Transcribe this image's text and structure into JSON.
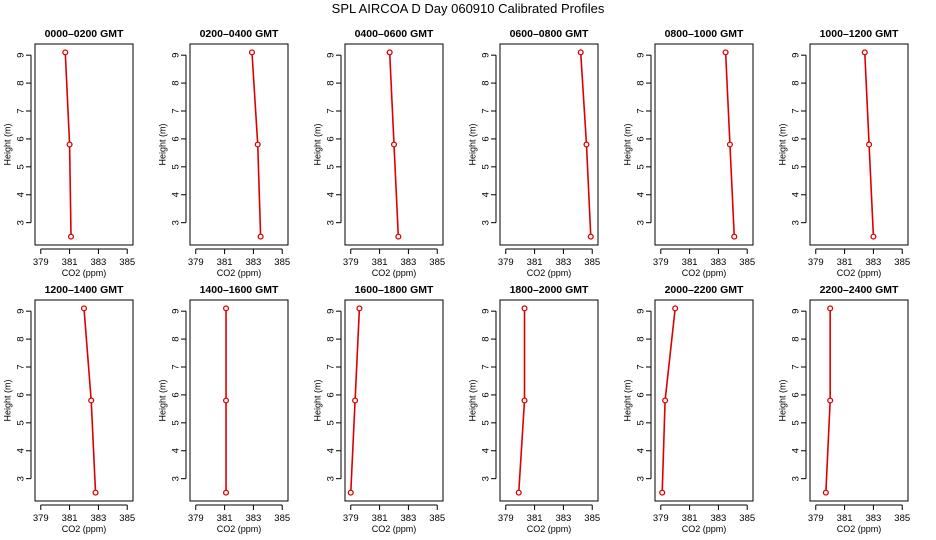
{
  "title": "SPL AIRCOA D  Day 060910  Calibrated Profiles",
  "colors": {
    "line": "#dd0000",
    "axis": "#000000",
    "background": "#ffffff"
  },
  "chart_data": [
    {
      "type": "line",
      "title": "0000–0200 GMT",
      "xlabel": "CO2 (ppm)",
      "ylabel": "Height (m)",
      "xlim": [
        378.6,
        385.4
      ],
      "ylim": [
        2.2,
        9.4
      ],
      "xticks": [
        379,
        381,
        383,
        385
      ],
      "yticks": [
        3,
        4,
        5,
        6,
        7,
        8,
        9
      ],
      "x": [
        380.7,
        381.0,
        381.1
      ],
      "y": [
        9.1,
        5.8,
        2.5
      ]
    },
    {
      "type": "line",
      "title": "0200–0400 GMT",
      "xlabel": "CO2 (ppm)",
      "ylabel": "Height (m)",
      "xlim": [
        378.6,
        385.4
      ],
      "ylim": [
        2.2,
        9.4
      ],
      "xticks": [
        379,
        381,
        383,
        385
      ],
      "yticks": [
        3,
        4,
        5,
        6,
        7,
        8,
        9
      ],
      "x": [
        382.9,
        383.3,
        383.5
      ],
      "y": [
        9.1,
        5.8,
        2.5
      ]
    },
    {
      "type": "line",
      "title": "0400–0600 GMT",
      "xlabel": "CO2 (ppm)",
      "ylabel": "Height (m)",
      "xlim": [
        378.6,
        385.4
      ],
      "ylim": [
        2.2,
        9.4
      ],
      "xticks": [
        379,
        381,
        383,
        385
      ],
      "yticks": [
        3,
        4,
        5,
        6,
        7,
        8,
        9
      ],
      "x": [
        381.7,
        382.0,
        382.3
      ],
      "y": [
        9.1,
        5.8,
        2.5
      ]
    },
    {
      "type": "line",
      "title": "0600–0800 GMT",
      "xlabel": "CO2 (ppm)",
      "ylabel": "Height (m)",
      "xlim": [
        378.6,
        385.4
      ],
      "ylim": [
        2.2,
        9.4
      ],
      "xticks": [
        379,
        381,
        383,
        385
      ],
      "yticks": [
        3,
        4,
        5,
        6,
        7,
        8,
        9
      ],
      "x": [
        384.2,
        384.6,
        384.9
      ],
      "y": [
        9.1,
        5.8,
        2.5
      ]
    },
    {
      "type": "line",
      "title": "0800–1000 GMT",
      "xlabel": "CO2 (ppm)",
      "ylabel": "Height (m)",
      "xlim": [
        378.6,
        385.4
      ],
      "ylim": [
        2.2,
        9.4
      ],
      "xticks": [
        379,
        381,
        383,
        385
      ],
      "yticks": [
        3,
        4,
        5,
        6,
        7,
        8,
        9
      ],
      "x": [
        383.5,
        383.8,
        384.1
      ],
      "y": [
        9.1,
        5.8,
        2.5
      ]
    },
    {
      "type": "line",
      "title": "1000–1200 GMT",
      "xlabel": "CO2 (ppm)",
      "ylabel": "Height (m)",
      "xlim": [
        378.6,
        385.4
      ],
      "ylim": [
        2.2,
        9.4
      ],
      "xticks": [
        379,
        381,
        383,
        385
      ],
      "yticks": [
        3,
        4,
        5,
        6,
        7,
        8,
        9
      ],
      "x": [
        382.4,
        382.7,
        383.0
      ],
      "y": [
        9.1,
        5.8,
        2.5
      ]
    },
    {
      "type": "line",
      "title": "1200–1400 GMT",
      "xlabel": "CO2 (ppm)",
      "ylabel": "Height (m)",
      "xlim": [
        378.6,
        385.4
      ],
      "ylim": [
        2.2,
        9.4
      ],
      "xticks": [
        379,
        381,
        383,
        385
      ],
      "yticks": [
        3,
        4,
        5,
        6,
        7,
        8,
        9
      ],
      "x": [
        382.0,
        382.5,
        382.8
      ],
      "y": [
        9.1,
        5.8,
        2.5
      ]
    },
    {
      "type": "line",
      "title": "1400–1600 GMT",
      "xlabel": "CO2 (ppm)",
      "ylabel": "Height (m)",
      "xlim": [
        378.6,
        385.4
      ],
      "ylim": [
        2.2,
        9.4
      ],
      "xticks": [
        379,
        381,
        383,
        385
      ],
      "yticks": [
        3,
        4,
        5,
        6,
        7,
        8,
        9
      ],
      "x": [
        381.1,
        381.1,
        381.1
      ],
      "y": [
        9.1,
        5.8,
        2.5
      ]
    },
    {
      "type": "line",
      "title": "1600–1800 GMT",
      "xlabel": "CO2 (ppm)",
      "ylabel": "Height (m)",
      "xlim": [
        378.6,
        385.4
      ],
      "ylim": [
        2.2,
        9.4
      ],
      "xticks": [
        379,
        381,
        383,
        385
      ],
      "yticks": [
        3,
        4,
        5,
        6,
        7,
        8,
        9
      ],
      "x": [
        379.6,
        379.3,
        379.0
      ],
      "y": [
        9.1,
        5.8,
        2.5
      ]
    },
    {
      "type": "line",
      "title": "1800–2000 GMT",
      "xlabel": "CO2 (ppm)",
      "ylabel": "Height (m)",
      "xlim": [
        378.6,
        385.4
      ],
      "ylim": [
        2.2,
        9.4
      ],
      "xticks": [
        379,
        381,
        383,
        385
      ],
      "yticks": [
        3,
        4,
        5,
        6,
        7,
        8,
        9
      ],
      "x": [
        380.3,
        380.3,
        379.9
      ],
      "y": [
        9.1,
        5.8,
        2.5
      ]
    },
    {
      "type": "line",
      "title": "2000–2200 GMT",
      "xlabel": "CO2 (ppm)",
      "ylabel": "Height (m)",
      "xlim": [
        378.6,
        385.4
      ],
      "ylim": [
        2.2,
        9.4
      ],
      "xticks": [
        379,
        381,
        383,
        385
      ],
      "yticks": [
        3,
        4,
        5,
        6,
        7,
        8,
        9
      ],
      "x": [
        380.0,
        379.3,
        379.1
      ],
      "y": [
        9.1,
        5.8,
        2.5
      ]
    },
    {
      "type": "line",
      "title": "2200–2400 GMT",
      "xlabel": "CO2 (ppm)",
      "ylabel": "Height (m)",
      "xlim": [
        378.6,
        385.4
      ],
      "ylim": [
        2.2,
        9.4
      ],
      "xticks": [
        379,
        381,
        383,
        385
      ],
      "yticks": [
        3,
        4,
        5,
        6,
        7,
        8,
        9
      ],
      "x": [
        380.0,
        380.0,
        379.7
      ],
      "y": [
        9.1,
        5.8,
        2.5
      ]
    }
  ]
}
